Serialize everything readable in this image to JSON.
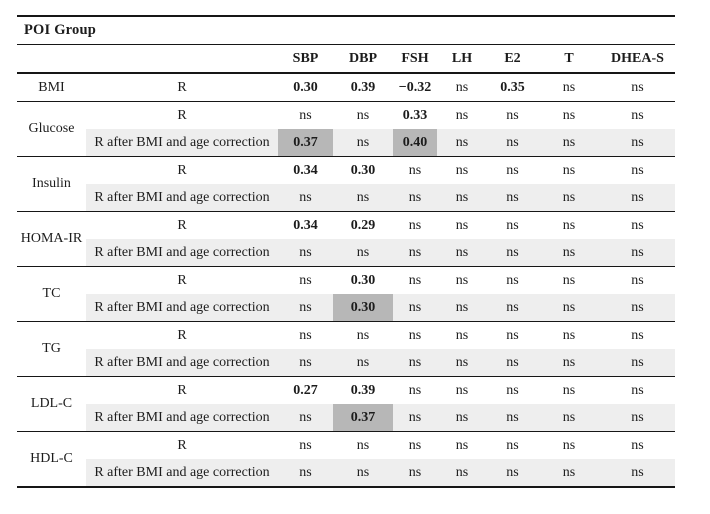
{
  "table": {
    "title": "POI Group",
    "columns": [
      "SBP",
      "DBP",
      "FSH",
      "LH",
      "E2",
      "T",
      "DHEA-S"
    ],
    "sections": [
      {
        "param": "BMI",
        "rows": [
          {
            "label": "R",
            "shaded": false,
            "cells": [
              {
                "v": "0.30"
              },
              {
                "v": "0.39"
              },
              {
                "v": "−0.32"
              },
              {
                "v": "ns"
              },
              {
                "v": "0.35"
              },
              {
                "v": "ns"
              },
              {
                "v": "ns"
              }
            ]
          }
        ]
      },
      {
        "param": "Glucose",
        "rows": [
          {
            "label": "R",
            "shaded": false,
            "cells": [
              {
                "v": "ns"
              },
              {
                "v": "ns"
              },
              {
                "v": "0.33"
              },
              {
                "v": "ns"
              },
              {
                "v": "ns"
              },
              {
                "v": "ns"
              },
              {
                "v": "ns"
              }
            ]
          },
          {
            "label": "R after BMI and age correction",
            "shaded": true,
            "cells": [
              {
                "v": "0.37",
                "hl": true
              },
              {
                "v": "ns"
              },
              {
                "v": "0.40",
                "hl": true
              },
              {
                "v": "ns"
              },
              {
                "v": "ns"
              },
              {
                "v": "ns"
              },
              {
                "v": "ns"
              }
            ]
          }
        ]
      },
      {
        "param": "Insulin",
        "rows": [
          {
            "label": "R",
            "shaded": false,
            "cells": [
              {
                "v": "0.34"
              },
              {
                "v": "0.30"
              },
              {
                "v": "ns"
              },
              {
                "v": "ns"
              },
              {
                "v": "ns"
              },
              {
                "v": "ns"
              },
              {
                "v": "ns"
              }
            ]
          },
          {
            "label": "R after BMI and age correction",
            "shaded": true,
            "cells": [
              {
                "v": "ns"
              },
              {
                "v": "ns"
              },
              {
                "v": "ns"
              },
              {
                "v": "ns"
              },
              {
                "v": "ns"
              },
              {
                "v": "ns"
              },
              {
                "v": "ns"
              }
            ]
          }
        ]
      },
      {
        "param": "HOMA-IR",
        "rows": [
          {
            "label": "R",
            "shaded": false,
            "cells": [
              {
                "v": "0.34"
              },
              {
                "v": "0.29"
              },
              {
                "v": "ns"
              },
              {
                "v": "ns"
              },
              {
                "v": "ns"
              },
              {
                "v": "ns"
              },
              {
                "v": "ns"
              }
            ]
          },
          {
            "label": "R after BMI and age correction",
            "shaded": true,
            "cells": [
              {
                "v": "ns"
              },
              {
                "v": "ns"
              },
              {
                "v": "ns"
              },
              {
                "v": "ns"
              },
              {
                "v": "ns"
              },
              {
                "v": "ns"
              },
              {
                "v": "ns"
              }
            ]
          }
        ]
      },
      {
        "param": "TC",
        "rows": [
          {
            "label": "R",
            "shaded": false,
            "cells": [
              {
                "v": "ns"
              },
              {
                "v": "0.30"
              },
              {
                "v": "ns"
              },
              {
                "v": "ns"
              },
              {
                "v": "ns"
              },
              {
                "v": "ns"
              },
              {
                "v": "ns"
              }
            ]
          },
          {
            "label": "R after BMI and age correction",
            "shaded": true,
            "cells": [
              {
                "v": "ns"
              },
              {
                "v": "0.30",
                "hl": true
              },
              {
                "v": "ns"
              },
              {
                "v": "ns"
              },
              {
                "v": "ns"
              },
              {
                "v": "ns"
              },
              {
                "v": "ns"
              }
            ]
          }
        ]
      },
      {
        "param": "TG",
        "rows": [
          {
            "label": "R",
            "shaded": false,
            "cells": [
              {
                "v": "ns"
              },
              {
                "v": "ns"
              },
              {
                "v": "ns"
              },
              {
                "v": "ns"
              },
              {
                "v": "ns"
              },
              {
                "v": "ns"
              },
              {
                "v": "ns"
              }
            ]
          },
          {
            "label": "R after BMI and age correction",
            "shaded": true,
            "cells": [
              {
                "v": "ns"
              },
              {
                "v": "ns"
              },
              {
                "v": "ns"
              },
              {
                "v": "ns"
              },
              {
                "v": "ns"
              },
              {
                "v": "ns"
              },
              {
                "v": "ns"
              }
            ]
          }
        ]
      },
      {
        "param": "LDL-C",
        "rows": [
          {
            "label": "R",
            "shaded": false,
            "cells": [
              {
                "v": "0.27"
              },
              {
                "v": "0.39"
              },
              {
                "v": "ns"
              },
              {
                "v": "ns"
              },
              {
                "v": "ns"
              },
              {
                "v": "ns"
              },
              {
                "v": "ns"
              }
            ]
          },
          {
            "label": "R after BMI and age correction",
            "shaded": true,
            "cells": [
              {
                "v": "ns"
              },
              {
                "v": "0.37",
                "hl": true
              },
              {
                "v": "ns"
              },
              {
                "v": "ns"
              },
              {
                "v": "ns"
              },
              {
                "v": "ns"
              },
              {
                "v": "ns"
              }
            ]
          }
        ]
      },
      {
        "param": "HDL-C",
        "rows": [
          {
            "label": "R",
            "shaded": false,
            "cells": [
              {
                "v": "ns"
              },
              {
                "v": "ns"
              },
              {
                "v": "ns"
              },
              {
                "v": "ns"
              },
              {
                "v": "ns"
              },
              {
                "v": "ns"
              },
              {
                "v": "ns"
              }
            ]
          },
          {
            "label": "R after BMI and age correction",
            "shaded": true,
            "cells": [
              {
                "v": "ns"
              },
              {
                "v": "ns"
              },
              {
                "v": "ns"
              },
              {
                "v": "ns"
              },
              {
                "v": "ns"
              },
              {
                "v": "ns"
              },
              {
                "v": "ns"
              }
            ]
          }
        ]
      }
    ],
    "not_significant_marker": "ns"
  },
  "colors": {
    "shaded_row_bg": "#eeeeee",
    "highlight_bg": "#b7b7b7",
    "rule_color": "#161616",
    "text_color": "#1c1c1c"
  }
}
